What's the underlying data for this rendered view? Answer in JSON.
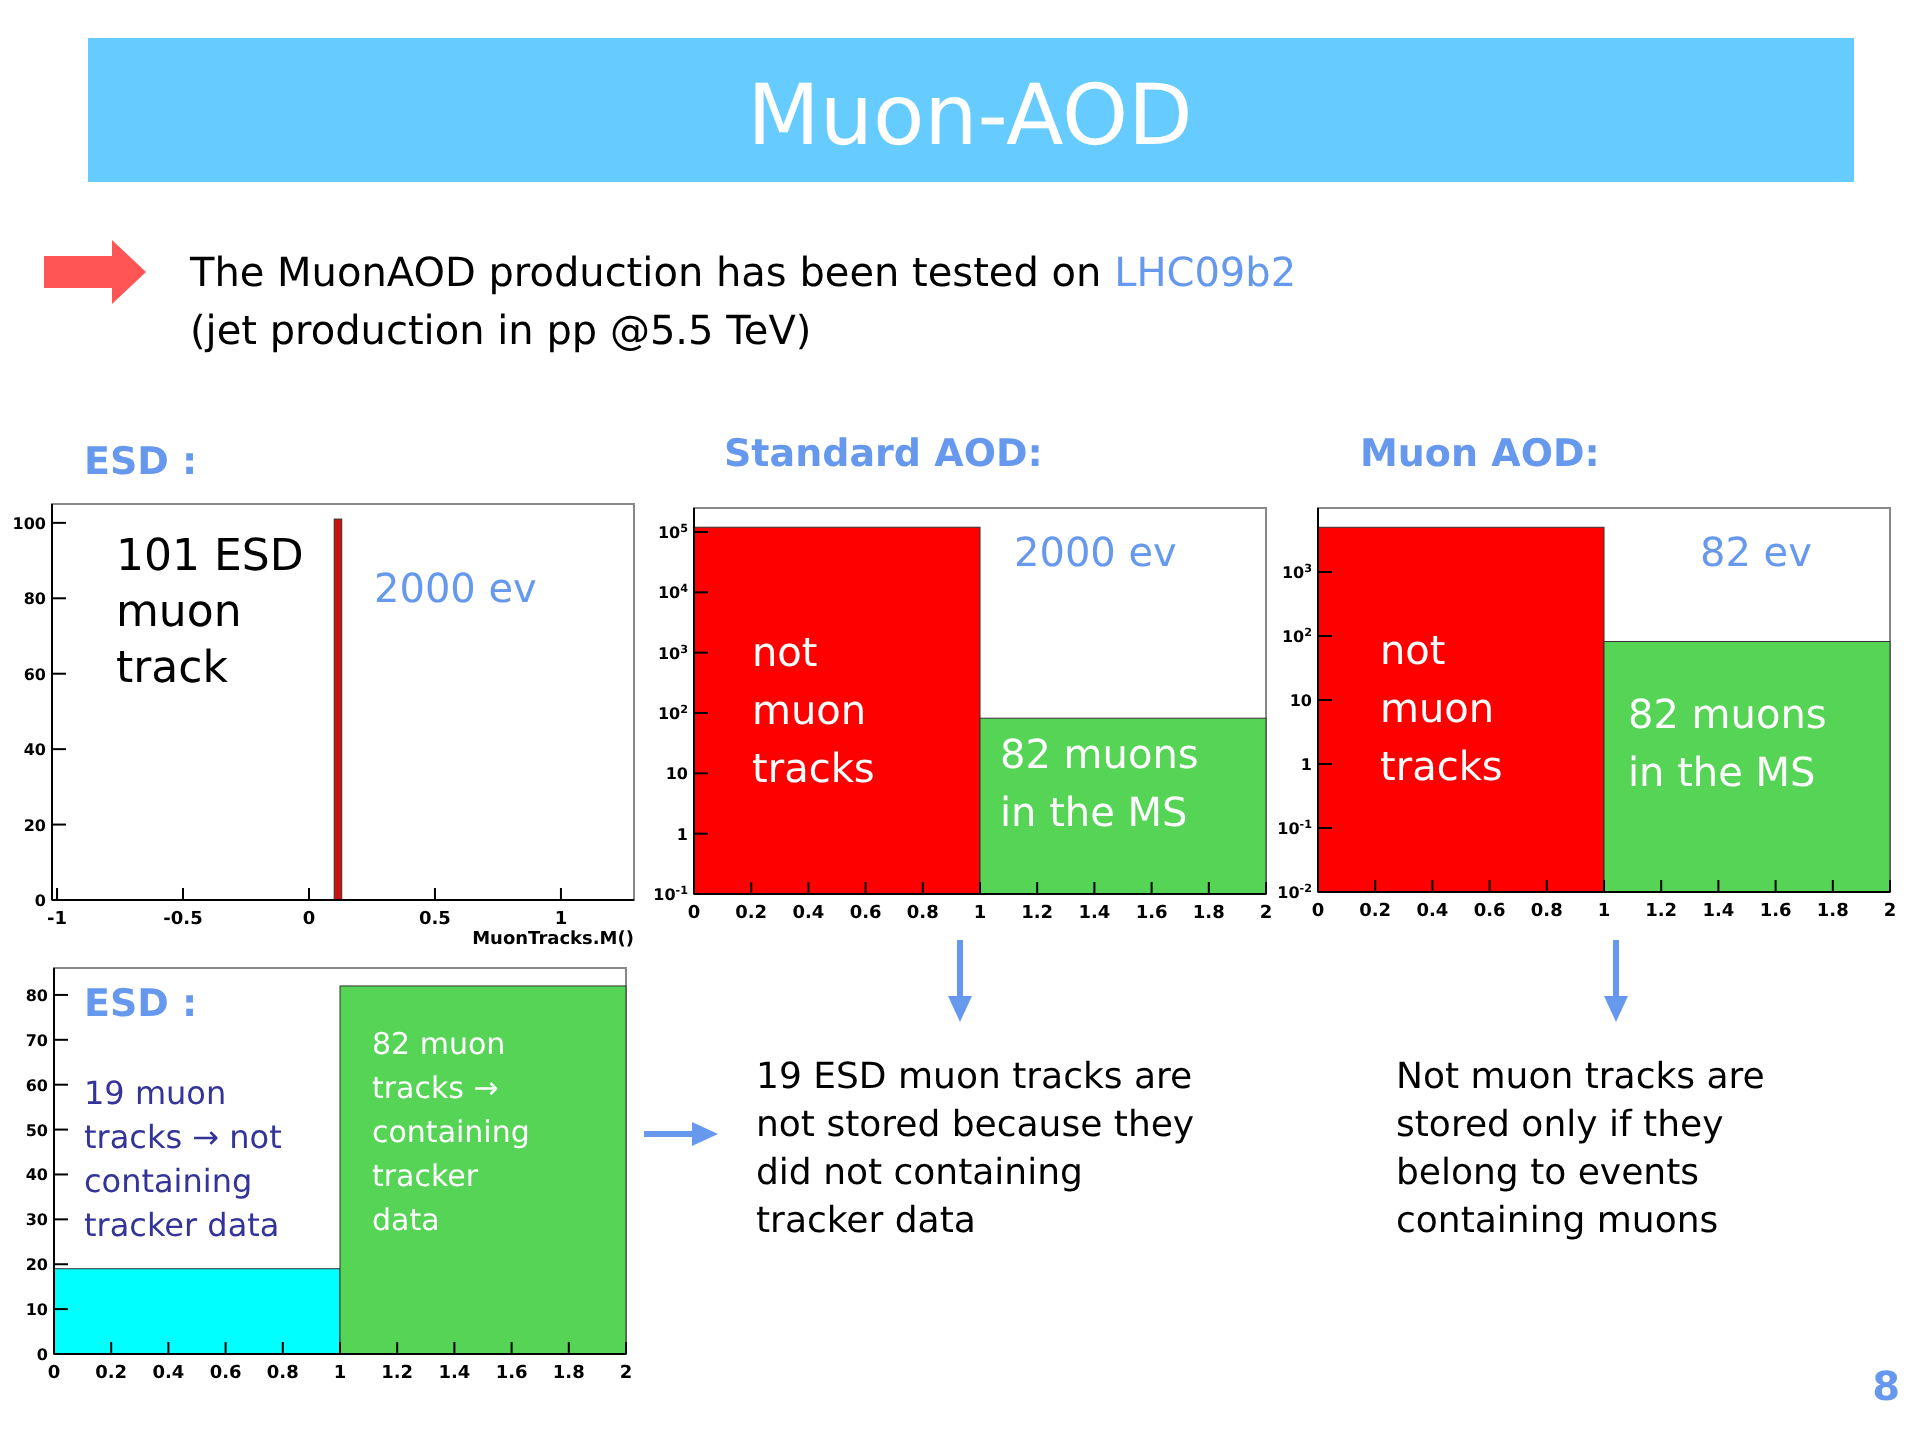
{
  "chart_data": [
    {
      "type": "histogram",
      "title": "ESD :",
      "xlabel": "MuonTracks.M()",
      "bins": [
        0.1,
        0.13
      ],
      "values": [
        101
      ],
      "colors": [
        "#cc1111"
      ],
      "xlim": [
        -1.02,
        1.29
      ],
      "ylim": [
        0,
        105
      ],
      "xticks": [
        -1,
        -0.5,
        0,
        0.5,
        1
      ],
      "yticks": [
        0,
        20,
        40,
        60,
        80,
        100
      ],
      "annotations": [
        "101 ESD muon track",
        "2000 ev"
      ]
    },
    {
      "type": "histogram",
      "title": "Standard AOD:",
      "bins": [
        0,
        1,
        2
      ],
      "values": [
        120000,
        82
      ],
      "colors": [
        "#ff0000",
        "#55d455"
      ],
      "log": "y",
      "xlim": [
        0,
        2
      ],
      "ylim": [
        0.1,
        250000
      ],
      "xticks": [
        0,
        0.2,
        0.4,
        0.6,
        0.8,
        1,
        1.2,
        1.4,
        1.6,
        1.8,
        2
      ],
      "yticks": [
        {
          "value": 0.1,
          "label": "10$^{-1}$"
        },
        1,
        10,
        {
          "value": 100,
          "label": "10$^{2}$"
        },
        {
          "value": 1000,
          "label": "10$^{3}$"
        },
        {
          "value": 10000,
          "label": "10$^{4}$"
        },
        {
          "value": 100000,
          "label": "10$^{5}$"
        }
      ],
      "annotations": [
        "2000 ev",
        "not muon tracks",
        "82 muons in the MS"
      ]
    },
    {
      "type": "histogram",
      "title": "Muon AOD:",
      "bins": [
        0,
        1,
        2
      ],
      "values": [
        5000,
        82
      ],
      "colors": [
        "#ff0000",
        "#55d455"
      ],
      "log": "y",
      "xlim": [
        0,
        2
      ],
      "ylim": [
        0.01,
        10000
      ],
      "xticks": [
        0,
        0.2,
        0.4,
        0.6,
        0.8,
        1,
        1.2,
        1.4,
        1.6,
        1.8,
        2
      ],
      "yticks": [
        {
          "value": 0.01,
          "label": "10$^{-2}$"
        },
        {
          "value": 0.1,
          "label": "10$^{-1}$"
        },
        1,
        10,
        {
          "value": 100,
          "label": "10$^{2}$"
        },
        {
          "value": 1000,
          "label": "10$^{3}$"
        }
      ],
      "annotations": [
        "82 ev",
        "not muon tracks",
        "82 muons in the MS"
      ]
    },
    {
      "type": "histogram",
      "title": "ESD :",
      "bins": [
        0,
        1,
        2
      ],
      "values": [
        19,
        82
      ],
      "colors": [
        "#00ffff",
        "#55d455"
      ],
      "xlim": [
        0,
        2
      ],
      "ylim": [
        0,
        86
      ],
      "xticks": [
        0,
        0.2,
        0.4,
        0.6,
        0.8,
        1,
        1.2,
        1.4,
        1.6,
        1.8,
        2
      ],
      "yticks": [
        0,
        10,
        20,
        30,
        40,
        50,
        60,
        70,
        80
      ],
      "annotations": [
        "19 muon tracks → not containing tracker data",
        "82 muon tracks → containing tracker data"
      ]
    },
    {
      "type": "other",
      "title": "Muon-AOD",
      "annotations": [
        "The MuonAOD production has been tested on LHC09b2",
        "(jet production in pp @5.5 TeV)",
        "19 ESD muon tracks are not stored because they did not containing tracker data",
        "Not muon tracks are stored only if they belong to events containing muons",
        "8"
      ]
    }
  ]
}
